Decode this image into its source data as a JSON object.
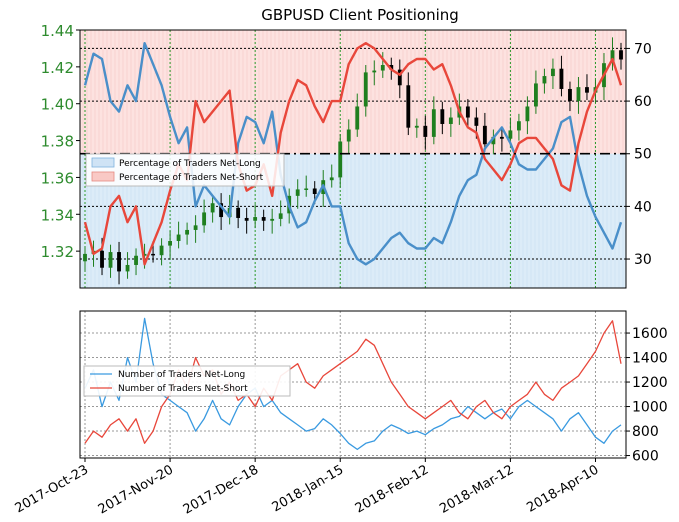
{
  "chart_data": [
    {
      "type": "candlestick",
      "title": "GBPUSD Client Positioning",
      "left_axis": {
        "ticks": [
          1.32,
          1.34,
          1.36,
          1.38,
          1.4,
          1.42,
          1.44
        ],
        "tick_labels": [
          "1.32",
          "1.34",
          "1.36",
          "1.38",
          "1.40",
          "1.42",
          "1.44"
        ],
        "ylim": [
          1.3,
          1.44
        ],
        "color": "#2e8b2e"
      },
      "right_axis": {
        "ticks": [
          30,
          40,
          50,
          60,
          70
        ],
        "tick_labels": [
          "30",
          "40",
          "50",
          "60",
          "70"
        ],
        "ylim": [
          24.5,
          73.5
        ],
        "midline": 50
      },
      "x_dates": [
        "2017-Oct-23",
        "2017-Oct-25",
        "2017-Oct-27",
        "2017-Oct-31",
        "2017-Nov-02",
        "2017-Nov-06",
        "2017-Nov-08",
        "2017-Nov-10",
        "2017-Nov-14",
        "2017-Nov-16",
        "2017-Nov-20",
        "2017-Nov-22",
        "2017-Nov-24",
        "2017-Nov-28",
        "2017-Nov-30",
        "2017-Dec-04",
        "2017-Dec-06",
        "2017-Dec-08",
        "2017-Dec-12",
        "2017-Dec-14",
        "2017-Dec-18",
        "2017-Dec-20",
        "2017-Dec-22",
        "2017-Dec-26",
        "2017-Dec-28",
        "2018-Jan-01",
        "2018-Jan-03",
        "2018-Jan-05",
        "2018-Jan-09",
        "2018-Jan-11",
        "2018-Jan-15",
        "2018-Jan-17",
        "2018-Jan-19",
        "2018-Jan-23",
        "2018-Jan-25",
        "2018-Jan-29",
        "2018-Jan-31",
        "2018-Feb-02",
        "2018-Feb-06",
        "2018-Feb-08",
        "2018-Feb-12",
        "2018-Feb-14",
        "2018-Feb-16",
        "2018-Feb-20",
        "2018-Feb-22",
        "2018-Feb-26",
        "2018-Feb-28",
        "2018-Mar-02",
        "2018-Mar-06",
        "2018-Mar-08",
        "2018-Mar-12",
        "2018-Mar-14",
        "2018-Mar-16",
        "2018-Mar-20",
        "2018-Mar-22",
        "2018-Mar-26",
        "2018-Mar-28",
        "2018-Mar-30",
        "2018-Apr-03",
        "2018-Apr-05",
        "2018-Apr-09",
        "2018-Apr-11",
        "2018-Apr-13",
        "2018-Apr-17"
      ],
      "price_close": [
        1.3185,
        1.3202,
        1.311,
        1.3195,
        1.309,
        1.3125,
        1.3175,
        1.3185,
        1.3178,
        1.323,
        1.3255,
        1.329,
        1.3315,
        1.334,
        1.341,
        1.346,
        1.3385,
        1.3435,
        1.338,
        1.3365,
        1.3385,
        1.3365,
        1.3375,
        1.3405,
        1.35,
        1.3535,
        1.354,
        1.351,
        1.3585,
        1.36,
        1.3795,
        1.386,
        1.3985,
        1.417,
        1.418,
        1.421,
        1.4185,
        1.41,
        1.387,
        1.388,
        1.382,
        1.397,
        1.389,
        1.3925,
        1.3985,
        1.3925,
        1.388,
        1.378,
        1.382,
        1.381,
        1.3855,
        1.3905,
        1.3985,
        1.411,
        1.415,
        1.419,
        1.408,
        1.4015,
        1.409,
        1.406,
        1.409,
        1.422,
        1.429,
        1.424
      ],
      "pct_net_long": [
        63,
        69,
        68,
        60,
        58,
        63,
        60,
        71,
        67,
        63,
        57,
        52,
        55,
        40,
        44,
        42,
        40,
        38,
        52,
        57,
        56,
        52,
        58,
        46,
        40,
        36,
        37,
        41,
        44,
        40,
        40,
        33,
        30,
        29,
        30,
        32,
        34,
        35,
        33,
        32,
        32,
        34,
        33,
        37,
        42,
        45,
        46,
        51,
        53,
        55,
        52,
        48,
        47,
        47,
        49,
        51,
        56,
        57,
        48,
        42,
        38,
        35,
        32,
        37
      ],
      "pct_net_short": [
        37,
        31,
        32,
        40,
        42,
        37,
        40,
        29,
        33,
        37,
        43,
        48,
        45,
        60,
        56,
        58,
        60,
        62,
        48,
        43,
        44,
        48,
        42,
        54,
        60,
        64,
        63,
        59,
        56,
        60,
        60,
        67,
        70,
        71,
        70,
        68,
        66,
        65,
        67,
        68,
        68,
        66,
        67,
        63,
        58,
        55,
        54,
        49,
        47,
        45,
        48,
        52,
        53,
        53,
        51,
        49,
        44,
        43,
        52,
        58,
        62,
        65,
        68,
        63
      ],
      "legend": [
        "Percentage of Traders Net-Long",
        "Percentage of Traders Net-Short"
      ],
      "colors": {
        "net_long": "#4a8fc9",
        "net_short": "#e8473b",
        "candle": "#1f7f1f",
        "band_long": "#dcecf8",
        "band_short": "#fde2e0"
      }
    },
    {
      "type": "line",
      "x_dates": [
        "2017-Oct-23",
        "2017-Oct-25",
        "2017-Oct-27",
        "2017-Oct-31",
        "2017-Nov-02",
        "2017-Nov-06",
        "2017-Nov-08",
        "2017-Nov-10",
        "2017-Nov-14",
        "2017-Nov-16",
        "2017-Nov-20",
        "2017-Nov-22",
        "2017-Nov-24",
        "2017-Nov-28",
        "2017-Nov-30",
        "2017-Dec-04",
        "2017-Dec-06",
        "2017-Dec-08",
        "2017-Dec-12",
        "2017-Dec-14",
        "2017-Dec-18",
        "2017-Dec-20",
        "2017-Dec-22",
        "2017-Dec-26",
        "2017-Dec-28",
        "2018-Jan-01",
        "2018-Jan-03",
        "2018-Jan-05",
        "2018-Jan-09",
        "2018-Jan-11",
        "2018-Jan-15",
        "2018-Jan-17",
        "2018-Jan-19",
        "2018-Jan-23",
        "2018-Jan-25",
        "2018-Jan-29",
        "2018-Jan-31",
        "2018-Feb-02",
        "2018-Feb-06",
        "2018-Feb-08",
        "2018-Feb-12",
        "2018-Feb-14",
        "2018-Feb-16",
        "2018-Feb-20",
        "2018-Feb-22",
        "2018-Feb-26",
        "2018-Feb-28",
        "2018-Mar-02",
        "2018-Mar-06",
        "2018-Mar-08",
        "2018-Mar-12",
        "2018-Mar-14",
        "2018-Mar-16",
        "2018-Mar-20",
        "2018-Mar-22",
        "2018-Mar-26",
        "2018-Mar-28",
        "2018-Mar-30",
        "2018-Apr-03",
        "2018-Apr-05",
        "2018-Apr-09",
        "2018-Apr-11",
        "2018-Apr-13",
        "2018-Apr-17"
      ],
      "series": [
        {
          "name": "Number of Traders Net-Long",
          "color": "#3a9ae0",
          "values": [
            1150,
            1300,
            1000,
            1200,
            1050,
            1400,
            1200,
            1720,
            1350,
            1100,
            1050,
            1000,
            950,
            800,
            900,
            1050,
            900,
            850,
            1000,
            1100,
            1150,
            1000,
            1050,
            950,
            900,
            850,
            800,
            820,
            900,
            850,
            780,
            700,
            650,
            700,
            720,
            800,
            850,
            820,
            780,
            800,
            770,
            820,
            850,
            900,
            920,
            1000,
            950,
            900,
            950,
            980,
            900,
            1000,
            1050,
            1000,
            950,
            900,
            800,
            900,
            950,
            850,
            750,
            700,
            800,
            850
          ]
        },
        {
          "name": "Number of Traders Net-Short",
          "color": "#e8473b",
          "values": [
            700,
            800,
            750,
            850,
            900,
            800,
            900,
            700,
            800,
            1000,
            1100,
            1300,
            1150,
            1400,
            1250,
            1300,
            1100,
            1200,
            1050,
            1100,
            1000,
            1150,
            1050,
            1250,
            1300,
            1350,
            1200,
            1150,
            1250,
            1300,
            1350,
            1400,
            1450,
            1550,
            1500,
            1350,
            1200,
            1100,
            1000,
            950,
            900,
            950,
            1000,
            1050,
            950,
            900,
            1000,
            1050,
            950,
            900,
            1000,
            1050,
            1100,
            1200,
            1100,
            1050,
            1150,
            1200,
            1250,
            1350,
            1450,
            1600,
            1700,
            1350
          ]
        }
      ],
      "right_axis": {
        "ticks": [
          600,
          800,
          1000,
          1200,
          1400,
          1600
        ],
        "tick_labels": [
          "600",
          "800",
          "1000",
          "1200",
          "1400",
          "1600"
        ],
        "ylim": [
          580,
          1780
        ]
      },
      "x_tick_labels": [
        "2017-Oct-23",
        "2017-Nov-20",
        "2017-Dec-18",
        "2018-Jan-15",
        "2018-Feb-12",
        "2018-Mar-12",
        "2018-Apr-10"
      ],
      "legend": [
        "Number of Traders Net-Long",
        "Number of Traders Net-Short"
      ]
    }
  ]
}
